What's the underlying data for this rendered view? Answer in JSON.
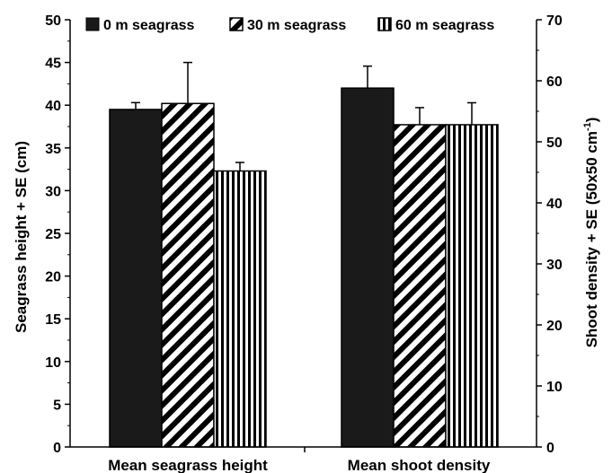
{
  "chart_data": {
    "type": "bar",
    "categories": [
      "Mean seagrass height",
      "Mean shoot density"
    ],
    "series": [
      {
        "name": "0 m seagrass",
        "values": [
          39.5,
          58.8
        ],
        "errors": [
          0.8,
          3.6
        ],
        "pattern": "solid"
      },
      {
        "name": "30 m seagrass",
        "values": [
          40.2,
          52.8
        ],
        "errors": [
          4.8,
          2.8
        ],
        "pattern": "diagonal"
      },
      {
        "name": "60 m seagrass",
        "values": [
          32.3,
          52.8
        ],
        "errors": [
          1.0,
          3.6
        ],
        "pattern": "vertical"
      }
    ],
    "series_axis": [
      "left",
      "right",
      "right"
    ],
    "ylabel_left": "Seagrass height + SE (cm)",
    "ylabel_right_prefix": "Shoot density + SE (50x50 cm",
    "ylabel_right_sup": "-1",
    "ylabel_right_suffix": ")",
    "ylim_left": [
      0,
      50
    ],
    "ylim_right": [
      0,
      70
    ],
    "yticks_left": [
      "0",
      "5",
      "10",
      "15",
      "20",
      "25",
      "30",
      "35",
      "40",
      "45",
      "50"
    ],
    "yticks_right": [
      "0",
      "10",
      "20",
      "30",
      "40",
      "50",
      "60",
      "70"
    ],
    "legend_position": "top",
    "grid": false
  }
}
